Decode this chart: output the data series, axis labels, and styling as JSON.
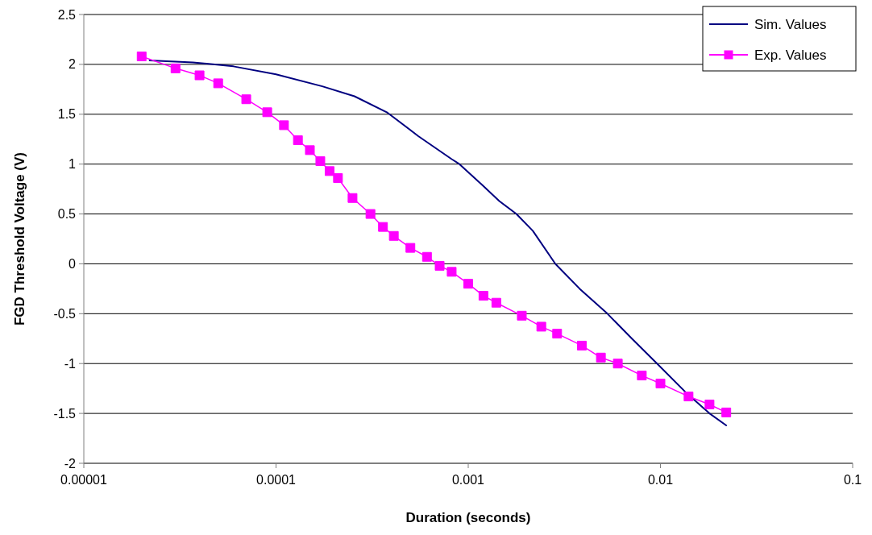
{
  "chart_data": {
    "type": "line",
    "xlabel": "Duration (seconds)",
    "ylabel": "FGD Threshold Voltage (V)",
    "log": "x",
    "xlim": [
      1e-05,
      0.1
    ],
    "xticks": [
      {
        "value": 1e-05,
        "label": "0.00001"
      },
      {
        "value": 0.0001,
        "label": "0.0001"
      },
      {
        "value": 0.001,
        "label": "0.001"
      },
      {
        "value": 0.01,
        "label": "0.01"
      },
      {
        "value": 0.1,
        "label": "0.1"
      }
    ],
    "ylim": [
      -2,
      2.5
    ],
    "yticks": [
      -2,
      -1.5,
      -1,
      -0.5,
      0,
      0.5,
      1,
      1.5,
      2,
      2.5
    ],
    "grid": "y",
    "legend": "top right",
    "series": [
      {
        "name": "Sim. Values",
        "color": "#000080",
        "marker": "none",
        "x": [
          2.2e-05,
          3.7e-05,
          6e-05,
          0.0001,
          0.000174,
          0.000256,
          0.000377,
          0.00055,
          0.00082,
          0.0009,
          0.0012,
          0.00145,
          0.00178,
          0.00217,
          0.00284,
          0.0038,
          0.0053,
          0.0071,
          0.0096,
          0.0134,
          0.018,
          0.022
        ],
        "values": [
          2.04,
          2.02,
          1.98,
          1.9,
          1.78,
          1.68,
          1.52,
          1.28,
          1.05,
          1.0,
          0.78,
          0.63,
          0.5,
          0.33,
          0,
          -0.25,
          -0.5,
          -0.75,
          -1,
          -1.28,
          -1.5,
          -1.62
        ]
      },
      {
        "name": "Exp. Values",
        "color": "#ff00ff",
        "marker": "square",
        "x": [
          2e-05,
          3e-05,
          4e-05,
          5e-05,
          7e-05,
          9e-05,
          0.00011,
          0.00013,
          0.00015,
          0.00017,
          0.00019,
          0.00021,
          0.00025,
          0.00031,
          0.00036,
          0.00041,
          0.0005,
          0.00061,
          0.00071,
          0.00082,
          0.001,
          0.0012,
          0.0014,
          0.0019,
          0.0024,
          0.0029,
          0.0039,
          0.0049,
          0.006,
          0.008,
          0.01,
          0.014,
          0.018,
          0.022
        ],
        "values": [
          2.08,
          1.96,
          1.89,
          1.81,
          1.65,
          1.52,
          1.39,
          1.24,
          1.14,
          1.03,
          0.93,
          0.86,
          0.66,
          0.5,
          0.37,
          0.28,
          0.16,
          0.07,
          -0.02,
          -0.08,
          -0.2,
          -0.32,
          -0.39,
          -0.52,
          -0.63,
          -0.7,
          -0.82,
          -0.94,
          -1.0,
          -1.12,
          -1.2,
          -1.33,
          -1.41,
          -1.49
        ]
      }
    ]
  }
}
